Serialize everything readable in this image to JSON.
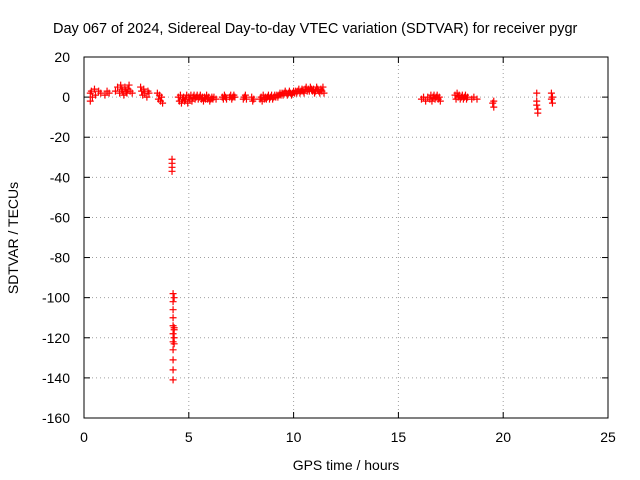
{
  "chart_data": {
    "type": "scatter",
    "title": "Day 067 of 2024, Sidereal Day-to-day VTEC variation (SDTVAR) for receiver pygr",
    "xlabel": "GPS time / hours",
    "ylabel": "SDTVAR / TECUs",
    "xlim": [
      0,
      25
    ],
    "ylim": [
      -160,
      20
    ],
    "xticks": [
      0,
      5,
      10,
      15,
      20,
      25
    ],
    "yticks": [
      -160,
      -140,
      -120,
      -100,
      -80,
      -60,
      -40,
      -20,
      0,
      20
    ],
    "grid": true,
    "marker": "+",
    "color": "#ff0000",
    "series": [
      {
        "name": "SDTVAR",
        "points": [
          [
            0.3,
            2
          ],
          [
            0.3,
            -2
          ],
          [
            0.35,
            3
          ],
          [
            0.4,
            0
          ],
          [
            0.5,
            4
          ],
          [
            0.55,
            1
          ],
          [
            0.7,
            3
          ],
          [
            0.8,
            2
          ],
          [
            1.0,
            1
          ],
          [
            1.1,
            3
          ],
          [
            1.2,
            2
          ],
          [
            1.5,
            3
          ],
          [
            1.6,
            5
          ],
          [
            1.7,
            2
          ],
          [
            1.75,
            6
          ],
          [
            1.8,
            4
          ],
          [
            1.85,
            3
          ],
          [
            1.9,
            1
          ],
          [
            1.95,
            5
          ],
          [
            2.0,
            3
          ],
          [
            2.05,
            2
          ],
          [
            2.1,
            4
          ],
          [
            2.15,
            6
          ],
          [
            2.2,
            3
          ],
          [
            2.3,
            2
          ],
          [
            2.7,
            5
          ],
          [
            2.75,
            3
          ],
          [
            2.8,
            1
          ],
          [
            2.85,
            4
          ],
          [
            2.9,
            2
          ],
          [
            3.0,
            0
          ],
          [
            3.05,
            3
          ],
          [
            3.1,
            2
          ],
          [
            3.5,
            2
          ],
          [
            3.55,
            -1
          ],
          [
            3.6,
            1
          ],
          [
            3.65,
            -2
          ],
          [
            3.7,
            0
          ],
          [
            3.75,
            -3
          ],
          [
            4.2,
            -31
          ],
          [
            4.2,
            -33
          ],
          [
            4.2,
            -35
          ],
          [
            4.2,
            -37
          ],
          [
            4.25,
            -98
          ],
          [
            4.25,
            -102
          ],
          [
            4.25,
            -106
          ],
          [
            4.25,
            -110
          ],
          [
            4.25,
            -114
          ],
          [
            4.25,
            -118
          ],
          [
            4.25,
            -122
          ],
          [
            4.25,
            -126
          ],
          [
            4.25,
            -131
          ],
          [
            4.25,
            -136
          ],
          [
            4.25,
            -141
          ],
          [
            4.3,
            -115
          ],
          [
            4.3,
            -120
          ],
          [
            4.3,
            -123
          ],
          [
            4.3,
            -100
          ],
          [
            4.3,
            -116
          ],
          [
            4.5,
            0
          ],
          [
            4.55,
            -2
          ],
          [
            4.6,
            1
          ],
          [
            4.65,
            -3
          ],
          [
            4.7,
            -1
          ],
          [
            4.75,
            0
          ],
          [
            4.8,
            -2
          ],
          [
            4.85,
            -1
          ],
          [
            4.9,
            1
          ],
          [
            4.95,
            -3
          ],
          [
            5.0,
            0
          ],
          [
            5.05,
            -1
          ],
          [
            5.1,
            1
          ],
          [
            5.15,
            -2
          ],
          [
            5.2,
            0
          ],
          [
            5.25,
            1
          ],
          [
            5.3,
            -1
          ],
          [
            5.35,
            0
          ],
          [
            5.4,
            1
          ],
          [
            5.45,
            -1
          ],
          [
            5.5,
            0
          ],
          [
            5.55,
            1
          ],
          [
            5.6,
            -1
          ],
          [
            5.65,
            0
          ],
          [
            5.7,
            -2
          ],
          [
            5.75,
            0
          ],
          [
            5.8,
            -1
          ],
          [
            5.85,
            1
          ],
          [
            5.9,
            -1
          ],
          [
            5.95,
            0
          ],
          [
            6.0,
            -2
          ],
          [
            6.05,
            -1
          ],
          [
            6.1,
            0
          ],
          [
            6.15,
            -1
          ],
          [
            6.2,
            0
          ],
          [
            6.3,
            -1
          ],
          [
            6.6,
            0
          ],
          [
            6.65,
            -1
          ],
          [
            6.7,
            1
          ],
          [
            6.75,
            0
          ],
          [
            6.8,
            -1
          ],
          [
            6.95,
            0
          ],
          [
            7.0,
            1
          ],
          [
            7.05,
            -1
          ],
          [
            7.1,
            0
          ],
          [
            7.15,
            1
          ],
          [
            7.2,
            0
          ],
          [
            7.6,
            -1
          ],
          [
            7.65,
            0
          ],
          [
            7.7,
            1
          ],
          [
            7.75,
            -1
          ],
          [
            8.0,
            0
          ],
          [
            8.05,
            -2
          ],
          [
            8.1,
            -1
          ],
          [
            8.4,
            -1
          ],
          [
            8.45,
            0
          ],
          [
            8.5,
            -2
          ],
          [
            8.55,
            1
          ],
          [
            8.6,
            -1
          ],
          [
            8.65,
            0
          ],
          [
            8.7,
            -1
          ],
          [
            8.75,
            0
          ],
          [
            8.8,
            1
          ],
          [
            8.85,
            -1
          ],
          [
            8.9,
            0
          ],
          [
            8.95,
            1
          ],
          [
            9.0,
            -1
          ],
          [
            9.05,
            0
          ],
          [
            9.1,
            1
          ],
          [
            9.15,
            0
          ],
          [
            9.2,
            1
          ],
          [
            9.25,
            0
          ],
          [
            9.3,
            1
          ],
          [
            9.35,
            2
          ],
          [
            9.4,
            1
          ],
          [
            9.45,
            2
          ],
          [
            9.5,
            1
          ],
          [
            9.55,
            2
          ],
          [
            9.6,
            3
          ],
          [
            9.65,
            2
          ],
          [
            9.7,
            1
          ],
          [
            9.75,
            2
          ],
          [
            9.8,
            3
          ],
          [
            9.85,
            2
          ],
          [
            9.9,
            1
          ],
          [
            9.95,
            2
          ],
          [
            10.0,
            3
          ],
          [
            10.05,
            2
          ],
          [
            10.1,
            3
          ],
          [
            10.15,
            2
          ],
          [
            10.2,
            3
          ],
          [
            10.25,
            4
          ],
          [
            10.3,
            2
          ],
          [
            10.35,
            3
          ],
          [
            10.4,
            4
          ],
          [
            10.45,
            3
          ],
          [
            10.5,
            2
          ],
          [
            10.55,
            4
          ],
          [
            10.6,
            5
          ],
          [
            10.65,
            3
          ],
          [
            10.7,
            4
          ],
          [
            10.75,
            3
          ],
          [
            10.8,
            5
          ],
          [
            10.85,
            4
          ],
          [
            10.9,
            3
          ],
          [
            10.95,
            4
          ],
          [
            11.0,
            2
          ],
          [
            11.05,
            3
          ],
          [
            11.1,
            5
          ],
          [
            11.15,
            4
          ],
          [
            11.2,
            3
          ],
          [
            11.25,
            2
          ],
          [
            11.3,
            4
          ],
          [
            11.35,
            3
          ],
          [
            11.4,
            5
          ],
          [
            11.45,
            2
          ],
          [
            16.1,
            -1
          ],
          [
            16.2,
            0
          ],
          [
            16.3,
            -2
          ],
          [
            16.4,
            0
          ],
          [
            16.5,
            -1
          ],
          [
            16.55,
            1
          ],
          [
            16.6,
            -2
          ],
          [
            16.65,
            0
          ],
          [
            16.7,
            1
          ],
          [
            16.75,
            -1
          ],
          [
            16.8,
            0
          ],
          [
            16.85,
            1
          ],
          [
            16.9,
            -1
          ],
          [
            16.95,
            0
          ],
          [
            17.0,
            -2
          ],
          [
            17.7,
            1
          ],
          [
            17.75,
            -1
          ],
          [
            17.8,
            2
          ],
          [
            17.85,
            0
          ],
          [
            17.9,
            1
          ],
          [
            17.95,
            -1
          ],
          [
            18.0,
            0
          ],
          [
            18.05,
            1
          ],
          [
            18.1,
            -1
          ],
          [
            18.15,
            0
          ],
          [
            18.2,
            1
          ],
          [
            18.25,
            -1
          ],
          [
            18.3,
            0
          ],
          [
            18.5,
            -1
          ],
          [
            18.6,
            0
          ],
          [
            18.75,
            -1
          ],
          [
            19.5,
            -3
          ],
          [
            19.55,
            -5
          ],
          [
            19.55,
            -2
          ],
          [
            21.6,
            2
          ],
          [
            21.6,
            -2
          ],
          [
            21.6,
            -4
          ],
          [
            21.65,
            -6
          ],
          [
            21.65,
            -8
          ],
          [
            22.3,
            2
          ],
          [
            22.3,
            -1
          ],
          [
            22.35,
            0
          ],
          [
            22.35,
            -3
          ]
        ]
      }
    ]
  }
}
